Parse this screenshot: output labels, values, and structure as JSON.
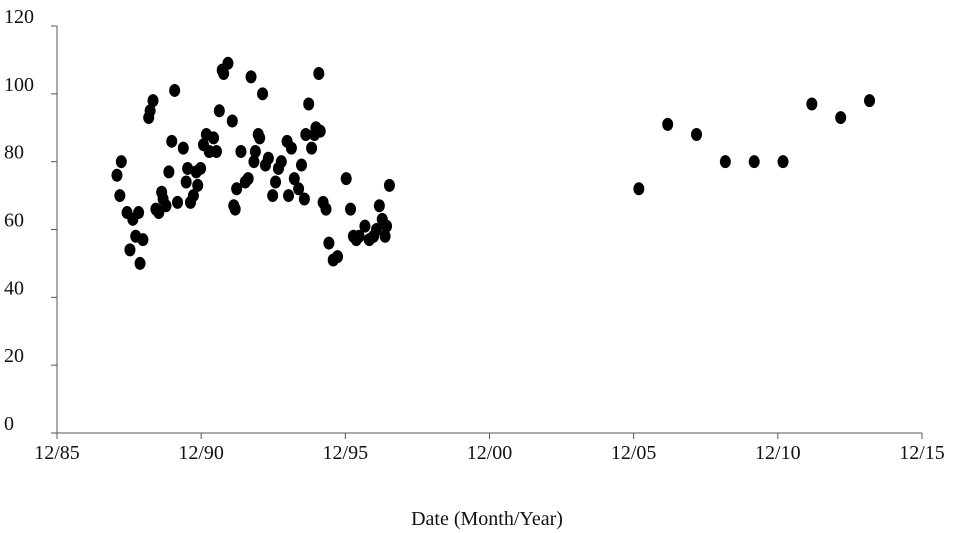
{
  "chart_data": {
    "type": "scatter",
    "title": "",
    "xlabel": "Date (Month/Year)",
    "ylabel": "",
    "ylim": [
      0,
      120
    ],
    "xlim": [
      "12/85",
      "12/15"
    ],
    "grid": false,
    "legend": "none",
    "colors": {
      "marker": "#000000",
      "axis": "#555555"
    },
    "yticks": [
      {
        "value": 0,
        "label": "0"
      },
      {
        "value": 20,
        "label": "20"
      },
      {
        "value": 40,
        "label": "40"
      },
      {
        "value": 60,
        "label": "60"
      },
      {
        "value": 80,
        "label": "80"
      },
      {
        "value": 100,
        "label": "100"
      },
      {
        "value": 120,
        "label": "120"
      }
    ],
    "xticks": [
      {
        "value": 1985.92,
        "label": "12/85"
      },
      {
        "value": 1990.92,
        "label": "12/90"
      },
      {
        "value": 1995.92,
        "label": "12/95"
      },
      {
        "value": 2000.92,
        "label": "12/00"
      },
      {
        "value": 2005.92,
        "label": "12/05"
      },
      {
        "value": 2010.92,
        "label": "12/10"
      },
      {
        "value": 2015.92,
        "label": "12/15"
      }
    ],
    "points": [
      [
        1988.0,
        76
      ],
      [
        1988.1,
        70
      ],
      [
        1988.15,
        80
      ],
      [
        1988.35,
        65
      ],
      [
        1988.45,
        54
      ],
      [
        1988.55,
        63
      ],
      [
        1988.65,
        58
      ],
      [
        1988.75,
        65
      ],
      [
        1988.8,
        50
      ],
      [
        1988.9,
        57
      ],
      [
        1989.1,
        93
      ],
      [
        1989.15,
        95
      ],
      [
        1989.25,
        98
      ],
      [
        1989.35,
        66
      ],
      [
        1989.45,
        65
      ],
      [
        1989.55,
        71
      ],
      [
        1989.6,
        69
      ],
      [
        1989.7,
        67
      ],
      [
        1989.8,
        77
      ],
      [
        1989.9,
        86
      ],
      [
        1990.0,
        101
      ],
      [
        1990.1,
        68
      ],
      [
        1990.3,
        84
      ],
      [
        1990.4,
        74
      ],
      [
        1990.45,
        78
      ],
      [
        1990.55,
        68
      ],
      [
        1990.65,
        70
      ],
      [
        1990.75,
        77
      ],
      [
        1990.8,
        73
      ],
      [
        1990.9,
        78
      ],
      [
        1991.0,
        85
      ],
      [
        1991.1,
        88
      ],
      [
        1991.2,
        83
      ],
      [
        1991.35,
        87
      ],
      [
        1991.45,
        83
      ],
      [
        1991.55,
        95
      ],
      [
        1991.65,
        107
      ],
      [
        1991.7,
        106
      ],
      [
        1991.85,
        109
      ],
      [
        1992.0,
        92
      ],
      [
        1992.05,
        67
      ],
      [
        1992.1,
        66
      ],
      [
        1992.15,
        72
      ],
      [
        1992.3,
        83
      ],
      [
        1992.45,
        74
      ],
      [
        1992.55,
        75
      ],
      [
        1992.65,
        105
      ],
      [
        1992.75,
        80
      ],
      [
        1992.8,
        83
      ],
      [
        1992.9,
        88
      ],
      [
        1992.95,
        87
      ],
      [
        1993.05,
        100
      ],
      [
        1993.15,
        79
      ],
      [
        1993.25,
        81
      ],
      [
        1993.4,
        70
      ],
      [
        1993.5,
        74
      ],
      [
        1993.6,
        78
      ],
      [
        1993.7,
        80
      ],
      [
        1993.9,
        86
      ],
      [
        1993.95,
        70
      ],
      [
        1994.05,
        84
      ],
      [
        1994.15,
        75
      ],
      [
        1994.3,
        72
      ],
      [
        1994.4,
        79
      ],
      [
        1994.5,
        69
      ],
      [
        1994.55,
        88
      ],
      [
        1994.65,
        97
      ],
      [
        1994.75,
        84
      ],
      [
        1994.85,
        88
      ],
      [
        1994.9,
        90
      ],
      [
        1995.0,
        106
      ],
      [
        1995.05,
        89
      ],
      [
        1995.15,
        68
      ],
      [
        1995.25,
        66
      ],
      [
        1995.35,
        56
      ],
      [
        1995.5,
        51
      ],
      [
        1995.65,
        52
      ],
      [
        1995.95,
        75
      ],
      [
        1996.1,
        66
      ],
      [
        1996.2,
        58
      ],
      [
        1996.3,
        57
      ],
      [
        1996.4,
        58
      ],
      [
        1996.6,
        61
      ],
      [
        1996.75,
        57
      ],
      [
        1996.9,
        58
      ],
      [
        1997.0,
        60
      ],
      [
        1997.1,
        67
      ],
      [
        1997.2,
        63
      ],
      [
        1997.3,
        58
      ],
      [
        1997.35,
        61
      ],
      [
        1997.45,
        73
      ],
      [
        2006.1,
        72
      ],
      [
        2007.1,
        91
      ],
      [
        2008.1,
        88
      ],
      [
        2009.1,
        80
      ],
      [
        2010.1,
        80
      ],
      [
        2011.1,
        80
      ],
      [
        2012.1,
        97
      ],
      [
        2013.1,
        93
      ],
      [
        2014.1,
        98
      ]
    ]
  }
}
